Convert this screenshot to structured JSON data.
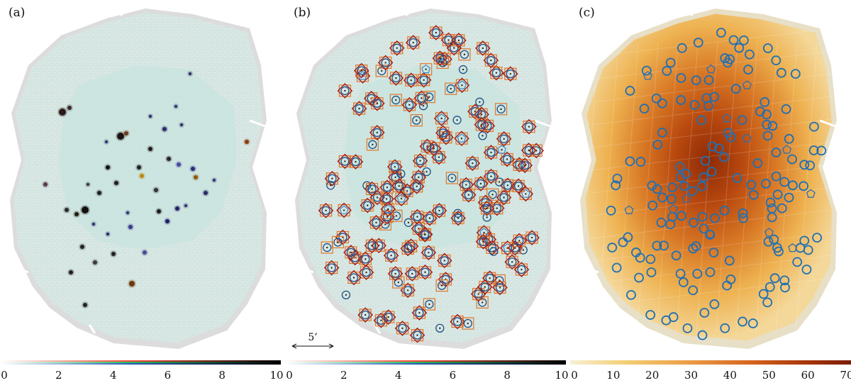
{
  "panels": [
    {
      "label": "(a)",
      "colorbar": "rgb",
      "ticks": [
        "0",
        "2",
        "4",
        "6",
        "8",
        "10"
      ]
    },
    {
      "label": "(b)",
      "colorbar": "rgb",
      "ticks": [
        "0",
        "2",
        "4",
        "6",
        "8",
        "10"
      ]
    },
    {
      "label": "(c)",
      "colorbar": "exposure",
      "ticks": [
        "0",
        "10",
        "20",
        "30",
        "40",
        "50",
        "60",
        "70"
      ]
    }
  ],
  "scale_bar": {
    "label": "5’"
  },
  "colors": {
    "field": "#cfe3df",
    "field_edge": "#d8d8d8",
    "exposure_low": "#f3dfa6",
    "exposure_mid": "#e48a2c",
    "exposure_high": "#9a3207",
    "circle": "#2070b4",
    "square": "#e0772a",
    "diamond": "#9b1c1c",
    "pentagon": "#2070b4"
  },
  "markers": {
    "circles": 165,
    "squares": 150,
    "diamonds": 140,
    "pentagons": 24
  }
}
